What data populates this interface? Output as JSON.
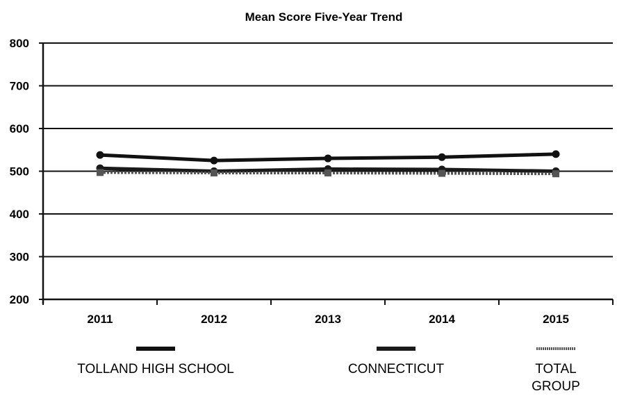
{
  "chart_data": {
    "type": "line",
    "title": "Mean Score Five-Year Trend",
    "xlabel": "",
    "ylabel": "",
    "ylim": [
      200,
      800
    ],
    "yticks": [
      "800",
      "700",
      "600",
      "500",
      "400",
      "300",
      "200"
    ],
    "categories": [
      "2011",
      "2012",
      "2013",
      "2014",
      "2015"
    ],
    "grid": true,
    "legend_position": "bottom",
    "series": [
      {
        "name": "TOLLAND HIGH SCHOOL",
        "values": [
          538,
          525,
          530,
          533,
          540
        ],
        "color": "#111111",
        "style": "solid"
      },
      {
        "name": "CONNECTICUT",
        "values": [
          507,
          500,
          505,
          504,
          500
        ],
        "color": "#1a1a1a",
        "style": "solid"
      },
      {
        "name": "TOTAL GROUP",
        "values": [
          497,
          496,
          496,
          495,
          494
        ],
        "color": "#555555",
        "style": "dotted"
      }
    ],
    "legend_labels": [
      {
        "line1": "TOLLAND HIGH SCHOOL",
        "line2": ""
      },
      {
        "line1": "CONNECTICUT",
        "line2": ""
      },
      {
        "line1": "TOTAL",
        "line2": "GROUP"
      }
    ]
  }
}
